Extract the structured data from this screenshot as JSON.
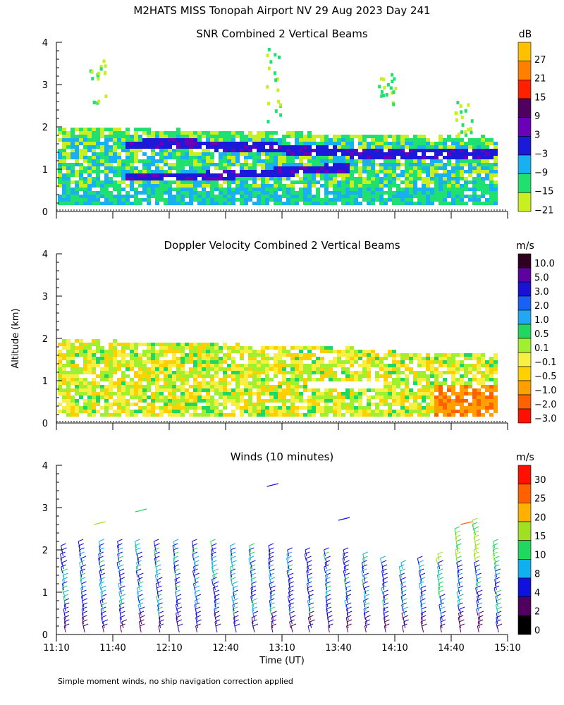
{
  "title": "M2HATS MISS Tonopah Airport NV  29 Aug 2023 Day 241",
  "ylabel": "Altitude (km)",
  "xlabel": "Time (UT)",
  "footnote": "Simple moment winds, no ship navigation correction applied",
  "chart_data": [
    {
      "type": "heatmap",
      "title": "SNR Combined 2 Vertical Beams",
      "units": "dB",
      "xlim": [
        "11:10",
        "15:10"
      ],
      "x_ticks": [
        "11:10",
        "11:40",
        "12:10",
        "12:40",
        "13:10",
        "13:40",
        "14:10",
        "14:40",
        "15:10"
      ],
      "ylim": [
        0,
        4
      ],
      "y_ticks": [
        "0",
        "1",
        "2",
        "3",
        "4"
      ],
      "colorbar_labels": [
        "27",
        "21",
        "15",
        "9",
        "3",
        "−3",
        "−9",
        "−15",
        "−21"
      ],
      "colorbar_colors": [
        "#ffc000",
        "#ff8000",
        "#ff2000",
        "#500060",
        "#6a00b8",
        "#1a1ad8",
        "#18b0f0",
        "#20e070",
        "#c8f020"
      ],
      "layers": [
        {
          "name": "boundary-layer background",
          "alt_km": [
            0.15,
            1.95
          ],
          "value_db": -12
        },
        {
          "name": "upper elevated layer",
          "alt_km": [
            1.3,
            1.6
          ],
          "value_db": -3
        },
        {
          "name": "lower elevated layer",
          "alt_km": [
            0.6,
            1.0
          ],
          "value_db": -3
        },
        {
          "name": "layer top",
          "alt_km": [
            1.8,
            1.95
          ],
          "value_db": -15
        }
      ]
    },
    {
      "type": "heatmap",
      "title": "Doppler Velocity Combined 2 Vertical Beams",
      "units": "m/s",
      "xlim": [
        "11:10",
        "15:10"
      ],
      "x_ticks": [
        "11:10",
        "11:40",
        "12:10",
        "12:40",
        "13:10",
        "13:40",
        "14:10",
        "14:40",
        "15:10"
      ],
      "ylim": [
        0,
        4
      ],
      "y_ticks": [
        "0",
        "1",
        "2",
        "3",
        "4"
      ],
      "colorbar_labels": [
        "10.0",
        "5.0",
        "3.0",
        "2.0",
        "1.0",
        "0.5",
        "0.1",
        "−0.1",
        "−0.5",
        "−1.0",
        "−2.0",
        "−3.0"
      ],
      "colorbar_colors": [
        "#300020",
        "#6000a0",
        "#1a10d8",
        "#1860f8",
        "#20a8f0",
        "#20d860",
        "#a0f030",
        "#f8f040",
        "#ffd000",
        "#ffa000",
        "#ff6000",
        "#ff1000"
      ],
      "layers": [
        {
          "name": "mixed layer",
          "alt_km": [
            0.15,
            1.95
          ],
          "value_ms": -0.2
        },
        {
          "name": "surface downdraft area",
          "alt_km": [
            0.15,
            0.9
          ],
          "time_range": [
            "14:30",
            "15:10"
          ],
          "value_ms": -1.5
        }
      ]
    },
    {
      "type": "wind_barbs",
      "title": "Winds (10 minutes)",
      "units": "m/s",
      "xlim": [
        "11:10",
        "15:10"
      ],
      "x_ticks": [
        "11:10",
        "11:40",
        "12:10",
        "12:40",
        "13:10",
        "13:40",
        "14:10",
        "14:40",
        "15:10"
      ],
      "ylim": [
        0,
        4
      ],
      "y_ticks": [
        "0",
        "1",
        "2",
        "3",
        "4"
      ],
      "colorbar_labels": [
        "30",
        "25",
        "20",
        "15",
        "10",
        "8",
        "4",
        "2",
        "0"
      ],
      "colorbar_colors": [
        "#ff1000",
        "#ff6000",
        "#ffb000",
        "#a0e020",
        "#20d860",
        "#10b0f0",
        "#1010e0",
        "#500060",
        "#000000"
      ],
      "profile_times": [
        "11:10",
        "11:20",
        "11:30",
        "11:40",
        "11:50",
        "12:00",
        "12:10",
        "12:20",
        "12:30",
        "12:40",
        "12:50",
        "13:00",
        "13:10",
        "13:20",
        "13:30",
        "13:40",
        "13:50",
        "14:00",
        "14:10",
        "14:20",
        "14:30",
        "14:40",
        "14:50",
        "15:00"
      ],
      "profile_top_km": [
        2.0,
        2.1,
        2.1,
        2.15,
        2.15,
        2.15,
        2.1,
        2.1,
        2.1,
        2.0,
        2.0,
        2.0,
        1.95,
        1.95,
        1.9,
        1.9,
        1.8,
        1.7,
        1.65,
        1.7,
        1.8,
        2.4,
        2.6,
        2.1
      ]
    }
  ]
}
